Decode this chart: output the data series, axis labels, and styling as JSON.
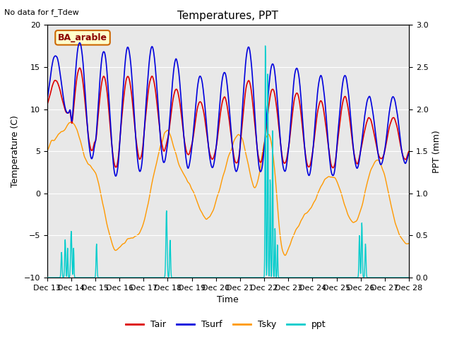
{
  "title": "Temperatures, PPT",
  "subtitle": "No data for f_Tdew",
  "annotation": "BA_arable",
  "xlabel": "Time",
  "ylabel_left": "Temperature (C)",
  "ylabel_right": "PPT (mm)",
  "ylim_left": [
    -10,
    20
  ],
  "ylim_right": [
    0.0,
    3.0
  ],
  "yticks_left": [
    -10,
    -5,
    0,
    5,
    10,
    15,
    20
  ],
  "yticks_right": [
    0.0,
    0.5,
    1.0,
    1.5,
    2.0,
    2.5,
    3.0
  ],
  "xtick_labels": [
    "Dec 13",
    "Dec 14",
    "Dec 15",
    "Dec 16",
    "Dec 17",
    "Dec 18",
    "Dec 19",
    "Dec 20",
    "Dec 21",
    "Dec 22",
    "Dec 23",
    "Dec 24",
    "Dec 25",
    "Dec 26",
    "Dec 27",
    "Dec 28"
  ],
  "colors": {
    "Tair": "#dd0000",
    "Tsurf": "#0000dd",
    "Tsky": "#ff9900",
    "ppt": "#00cccc",
    "background": "#e8e8e8",
    "annotation_bg": "#ffffcc",
    "annotation_border": "#cc6600"
  },
  "legend_entries": [
    "Tair",
    "Tsurf",
    "Tsky",
    "ppt"
  ],
  "figsize": [
    6.4,
    4.8
  ],
  "dpi": 100
}
